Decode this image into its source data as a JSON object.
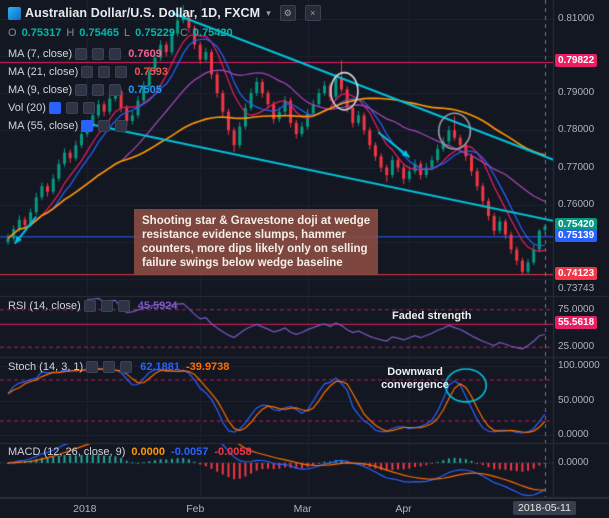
{
  "header": {
    "title": "Australian Dollar/U.S. Dollar, 1D, FXCM",
    "dropdown_caret": "▾",
    "buttons": [
      {
        "glyph": "⚙"
      },
      {
        "glyph": "×"
      }
    ],
    "ohlc": {
      "o_label": "O",
      "o_value": "0.75317",
      "h_label": "H",
      "h_value": "0.75465",
      "l_label": "L",
      "l_value": "0.75229",
      "c_label": "C",
      "c_value": "0.75420",
      "value_color": "#00b8a9"
    }
  },
  "indicator_rows": [
    {
      "label": "MA (7, close)",
      "value": "0.7609",
      "color": "#f06292"
    },
    {
      "label": "MA (21, close)",
      "value": "0.7593",
      "color": "#ef5350"
    },
    {
      "label": "MA (9, close)",
      "value": "0.7505",
      "color": "#2196f3"
    },
    {
      "label": "Vol (20)",
      "value": "",
      "color": ""
    },
    {
      "label": "MA (55, close)",
      "value": "",
      "color": ""
    }
  ],
  "annotation": {
    "lines": [
      "Shooting star & Gravestone doji at wedge",
      "resistance evidence slumps, hammer",
      "counters, more dips likely only on selling",
      "failure swings below wedge baseline"
    ]
  },
  "sub_panels": {
    "rsi": {
      "label": "RSI (14, close)",
      "value": "45.5924",
      "value_color": "#7e57c2",
      "annotation": "Faded strength",
      "range": [
        12,
        92
      ],
      "bands": [
        75,
        25
      ],
      "level": 55.5618,
      "line_color": "#7e57c2",
      "band_color": "#c2185b",
      "level_color": "#e91e63",
      "axis_plain": [
        {
          "text": "75.0000",
          "value": 75
        },
        {
          "text": "25.0000",
          "value": 25
        }
      ],
      "axis_tags": [
        {
          "text": "55.5618",
          "value": 55.5618,
          "color": "#e91e63"
        }
      ]
    },
    "stoch": {
      "label": "Stoch (14, 3, 1)",
      "values": [
        {
          "text": "62.1881",
          "color": "#2962ff"
        },
        {
          "text": "-39.9738",
          "color": "#ff6d00"
        }
      ],
      "annotation": "Downward convergence",
      "range": [
        -12,
        112
      ],
      "bands": [
        80,
        20
      ],
      "k_color": "#2962ff",
      "d_color": "#ff6d00",
      "band_color": "#c2185b",
      "axis_plain": [
        {
          "text": "100.0000",
          "value": 100
        },
        {
          "text": "50.0000",
          "value": 50
        },
        {
          "text": "0.0000",
          "value": 0
        }
      ]
    },
    "macd": {
      "label": "MACD (12, 26, close, 9)",
      "values": [
        {
          "text": "0.0000",
          "color": "#ff9800"
        },
        {
          "text": "-0.0057",
          "color": "#2962ff"
        },
        {
          "text": "-0.0058",
          "color": "#f23645"
        }
      ],
      "range": [
        -0.009,
        0.005
      ],
      "macd_color": "#2962ff",
      "signal_color": "#ff6d00",
      "hist_pos": "#26a69a",
      "hist_neg": "#f23645",
      "axis_plain": [
        {
          "text": "0.0000",
          "value": 0
        }
      ]
    }
  },
  "chart_data": {
    "type": "candlestick",
    "title": "Australian Dollar/U.S. Dollar, 1D, FXCM",
    "symbol": "AUD/USD",
    "timeframe": "1D",
    "exchange": "FXCM",
    "ohlc_current": {
      "open": 0.75317,
      "high": 0.75465,
      "low": 0.75229,
      "close": 0.7542
    },
    "colors": {
      "up": "#089981",
      "down": "#f23645",
      "background": "#131722",
      "grid": "#1c2230"
    },
    "price_axis": {
      "min": 0.7355,
      "max": 0.815,
      "plain_labels": [
        {
          "text": "0.81000",
          "price": 0.81
        },
        {
          "text": "0.79000",
          "price": 0.79
        },
        {
          "text": "0.78000",
          "price": 0.78
        },
        {
          "text": "0.77000",
          "price": 0.77
        },
        {
          "text": "0.76000",
          "price": 0.76
        },
        {
          "text": "0.73743",
          "price": 0.73743
        }
      ],
      "tags": [
        {
          "text": "0.79822",
          "price": 0.79822,
          "color": "#e91e63"
        },
        {
          "text": "0.75420",
          "price": 0.7542,
          "color": "#089981"
        },
        {
          "text": "0.75139",
          "price": 0.75139,
          "color": "#2962ff"
        },
        {
          "text": "0.74123",
          "price": 0.74123,
          "color": "#f23645"
        }
      ]
    },
    "levels": [
      {
        "price": 0.79822,
        "color": "#e91e63"
      },
      {
        "price": 0.75139,
        "color": "#2962ff"
      },
      {
        "price": 0.74123,
        "color": "#f23645"
      }
    ],
    "time_axis": {
      "labels": [
        {
          "text": "2018",
          "bar": 14
        },
        {
          "text": "Feb",
          "bar": 34
        },
        {
          "text": "Mar",
          "bar": 53
        },
        {
          "text": "Apr",
          "bar": 71
        }
      ],
      "tag": {
        "text": "2018-05-11",
        "bar": 95
      },
      "grid_bars": [
        14,
        34,
        53,
        71
      ]
    },
    "overlays": [
      {
        "name": "MA 7",
        "period": 7,
        "color": "#e91e63"
      },
      {
        "name": "MA 9",
        "period": 9,
        "color": "#2962ff"
      },
      {
        "name": "MA 21",
        "period": 21,
        "color": "#ab47bc"
      },
      {
        "name": "MA 55",
        "period": 55,
        "color": "#ff9800"
      }
    ],
    "drawings": {
      "trendlines": [
        {
          "b1": 29,
          "p1": 0.8115,
          "b2": 97,
          "p2": 0.7718,
          "color": "#00c3dd"
        },
        {
          "b1": 15,
          "p1": 0.7815,
          "b2": 97,
          "p2": 0.7555,
          "color": "#00c3dd"
        }
      ],
      "arrows": [
        {
          "b1": 65.5,
          "p1": 0.7795,
          "b2": 71,
          "p2": 0.7728,
          "color": "#00c3dd"
        },
        {
          "b1": 5,
          "p1": 0.7568,
          "b2": 1.2,
          "p2": 0.7496,
          "color": "#00c3dd"
        }
      ],
      "ellipses": [
        {
          "bar": 59.5,
          "price": 0.7905,
          "rx_bars": 2.4,
          "ry_price": 0.005,
          "color": "#cfd8dc"
        },
        {
          "bar": 79,
          "price": 0.7798,
          "rx_bars": 2.8,
          "ry_price": 0.0048,
          "color": "#9aa0a6"
        }
      ],
      "stoch_ellipse": {
        "bar": 81,
        "value": 72,
        "rx_bars": 3.6,
        "ry_value": 24,
        "color": "#00c3dd"
      }
    },
    "last_bar_line": {
      "bar": 95,
      "color": "#6b7694"
    },
    "candles": [
      [
        0.75,
        0.7522,
        0.7492,
        0.751
      ],
      [
        0.751,
        0.7545,
        0.7502,
        0.7535
      ],
      [
        0.7535,
        0.7572,
        0.7528,
        0.756
      ],
      [
        0.756,
        0.7568,
        0.7535,
        0.7545
      ],
      [
        0.7545,
        0.759,
        0.754,
        0.758
      ],
      [
        0.758,
        0.7632,
        0.7572,
        0.762
      ],
      [
        0.762,
        0.766,
        0.7612,
        0.765
      ],
      [
        0.765,
        0.7658,
        0.7622,
        0.7635
      ],
      [
        0.7635,
        0.7682,
        0.7628,
        0.767
      ],
      [
        0.767,
        0.7722,
        0.7662,
        0.771
      ],
      [
        0.771,
        0.7752,
        0.7702,
        0.774
      ],
      [
        0.774,
        0.7748,
        0.7712,
        0.7725
      ],
      [
        0.7725,
        0.7772,
        0.7718,
        0.776
      ],
      [
        0.776,
        0.7802,
        0.7752,
        0.779
      ],
      [
        0.779,
        0.7822,
        0.7782,
        0.781
      ],
      [
        0.781,
        0.7852,
        0.7802,
        0.784
      ],
      [
        0.784,
        0.7882,
        0.7832,
        0.787
      ],
      [
        0.787,
        0.7878,
        0.7838,
        0.785
      ],
      [
        0.785,
        0.7897,
        0.7842,
        0.7885
      ],
      [
        0.7885,
        0.7918,
        0.7877,
        0.7905
      ],
      [
        0.7905,
        0.7912,
        0.7848,
        0.786
      ],
      [
        0.786,
        0.7868,
        0.7812,
        0.7825
      ],
      [
        0.7825,
        0.7852,
        0.7815,
        0.784
      ],
      [
        0.784,
        0.7892,
        0.7832,
        0.788
      ],
      [
        0.788,
        0.7932,
        0.7872,
        0.792
      ],
      [
        0.792,
        0.7972,
        0.7912,
        0.796
      ],
      [
        0.796,
        0.8007,
        0.7952,
        0.7995
      ],
      [
        0.7995,
        0.8042,
        0.7987,
        0.803
      ],
      [
        0.803,
        0.8038,
        0.7998,
        0.801
      ],
      [
        0.801,
        0.8072,
        0.8002,
        0.806
      ],
      [
        0.806,
        0.8107,
        0.8052,
        0.8095
      ],
      [
        0.8095,
        0.8136,
        0.8087,
        0.811
      ],
      [
        0.811,
        0.8118,
        0.8062,
        0.8075
      ],
      [
        0.8075,
        0.8082,
        0.8018,
        0.803
      ],
      [
        0.803,
        0.8038,
        0.7978,
        0.799
      ],
      [
        0.799,
        0.8022,
        0.7982,
        0.801
      ],
      [
        0.801,
        0.8018,
        0.7938,
        0.795
      ],
      [
        0.795,
        0.7958,
        0.7888,
        0.79
      ],
      [
        0.79,
        0.7908,
        0.7838,
        0.785
      ],
      [
        0.785,
        0.7858,
        0.7788,
        0.78
      ],
      [
        0.78,
        0.7808,
        0.7742,
        0.776
      ],
      [
        0.776,
        0.7822,
        0.7752,
        0.781
      ],
      [
        0.781,
        0.7872,
        0.7802,
        0.786
      ],
      [
        0.786,
        0.7912,
        0.7852,
        0.79
      ],
      [
        0.79,
        0.7942,
        0.7892,
        0.793
      ],
      [
        0.793,
        0.7938,
        0.7888,
        0.79
      ],
      [
        0.79,
        0.7908,
        0.7858,
        0.787
      ],
      [
        0.787,
        0.7878,
        0.7818,
        0.783
      ],
      [
        0.783,
        0.7862,
        0.7822,
        0.785
      ],
      [
        0.785,
        0.7892,
        0.7842,
        0.788
      ],
      [
        0.788,
        0.7888,
        0.7808,
        0.782
      ],
      [
        0.782,
        0.7828,
        0.7778,
        0.779
      ],
      [
        0.779,
        0.7822,
        0.7782,
        0.781
      ],
      [
        0.781,
        0.7857,
        0.7802,
        0.7845
      ],
      [
        0.7845,
        0.7882,
        0.7837,
        0.787
      ],
      [
        0.787,
        0.7912,
        0.7862,
        0.79
      ],
      [
        0.79,
        0.7932,
        0.7892,
        0.792
      ],
      [
        0.792,
        0.7928,
        0.7878,
        0.789
      ],
      [
        0.789,
        0.7952,
        0.7882,
        0.794
      ],
      [
        0.794,
        0.7988,
        0.7902,
        0.791
      ],
      [
        0.791,
        0.7918,
        0.7848,
        0.786
      ],
      [
        0.786,
        0.7868,
        0.7808,
        0.782
      ],
      [
        0.782,
        0.7852,
        0.7812,
        0.784
      ],
      [
        0.784,
        0.7848,
        0.7788,
        0.78
      ],
      [
        0.78,
        0.7808,
        0.7748,
        0.776
      ],
      [
        0.776,
        0.7768,
        0.7718,
        0.773
      ],
      [
        0.773,
        0.7738,
        0.7688,
        0.77
      ],
      [
        0.77,
        0.7708,
        0.7662,
        0.768
      ],
      [
        0.768,
        0.7732,
        0.7672,
        0.772
      ],
      [
        0.772,
        0.7728,
        0.7688,
        0.77
      ],
      [
        0.77,
        0.7708,
        0.7655,
        0.767
      ],
      [
        0.767,
        0.7702,
        0.7662,
        0.769
      ],
      [
        0.769,
        0.7722,
        0.7682,
        0.771
      ],
      [
        0.771,
        0.7718,
        0.7668,
        0.768
      ],
      [
        0.768,
        0.7712,
        0.7672,
        0.77
      ],
      [
        0.77,
        0.7732,
        0.7692,
        0.772
      ],
      [
        0.772,
        0.7762,
        0.7712,
        0.775
      ],
      [
        0.775,
        0.7782,
        0.7742,
        0.777
      ],
      [
        0.777,
        0.7812,
        0.7762,
        0.78
      ],
      [
        0.78,
        0.7838,
        0.7772,
        0.778
      ],
      [
        0.778,
        0.7788,
        0.7748,
        0.776
      ],
      [
        0.776,
        0.7768,
        0.7718,
        0.773
      ],
      [
        0.773,
        0.7738,
        0.7678,
        0.769
      ],
      [
        0.769,
        0.7698,
        0.7638,
        0.765
      ],
      [
        0.765,
        0.7658,
        0.7598,
        0.761
      ],
      [
        0.761,
        0.7618,
        0.7558,
        0.757
      ],
      [
        0.757,
        0.7578,
        0.7518,
        0.753
      ],
      [
        0.753,
        0.7568,
        0.7522,
        0.7555
      ],
      [
        0.7555,
        0.7562,
        0.7508,
        0.752
      ],
      [
        0.752,
        0.7528,
        0.7468,
        0.748
      ],
      [
        0.748,
        0.7488,
        0.7438,
        0.745
      ],
      [
        0.745,
        0.7458,
        0.74123,
        0.742
      ],
      [
        0.742,
        0.7455,
        0.74123,
        0.7445
      ],
      [
        0.7445,
        0.7492,
        0.7438,
        0.748
      ],
      [
        0.748,
        0.7535,
        0.7472,
        0.753
      ],
      [
        0.75317,
        0.75465,
        0.75229,
        0.7542
      ]
    ]
  }
}
